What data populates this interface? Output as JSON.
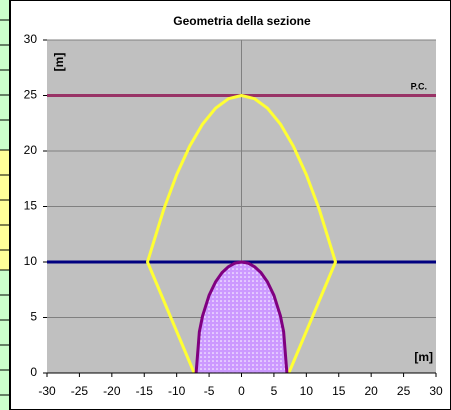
{
  "chart_data": {
    "type": "line",
    "title": "Geometria della sezione",
    "x_label": "[m]",
    "y_label": "[m]",
    "annotations": [
      "P.C."
    ],
    "xlim": [
      -30,
      30
    ],
    "xticks": [
      -30,
      -25,
      -20,
      -15,
      -10,
      -5,
      0,
      5,
      10,
      15,
      20,
      25,
      30
    ],
    "ylim": [
      0,
      30
    ],
    "yticks": [
      0,
      5,
      10,
      15,
      20,
      25,
      30
    ],
    "grid": true,
    "series": [
      {
        "color": "#993366",
        "x": [
          -30,
          30
        ],
        "values": [
          25,
          25
        ]
      },
      {
        "color": "#000080",
        "x": [
          -30,
          30
        ],
        "values": [
          10,
          10
        ]
      },
      {
        "color": "#ffff33",
        "x": [
          -7.3,
          -14.5,
          -12,
          -10,
          -8,
          -6,
          -4,
          -2,
          0,
          2,
          4,
          6,
          8,
          10,
          12,
          14.5,
          7.3
        ],
        "values": [
          0,
          10,
          14.73,
          17.87,
          20.43,
          22.43,
          23.86,
          24.71,
          25,
          24.71,
          23.86,
          22.43,
          20.43,
          17.87,
          14.73,
          10,
          0
        ]
      },
      {
        "color": "#800080",
        "fill": "#cc99ff",
        "x": [
          -7,
          -6.5,
          -6,
          -5,
          -4,
          -3,
          -2,
          -1,
          0,
          1,
          2,
          3,
          4,
          5,
          6,
          6.5,
          7
        ],
        "values": [
          0,
          3.71,
          5.15,
          7.0,
          8.21,
          9.04,
          9.58,
          9.9,
          10,
          9.9,
          9.58,
          9.04,
          8.21,
          7.0,
          5.15,
          3.71,
          0
        ]
      }
    ]
  }
}
